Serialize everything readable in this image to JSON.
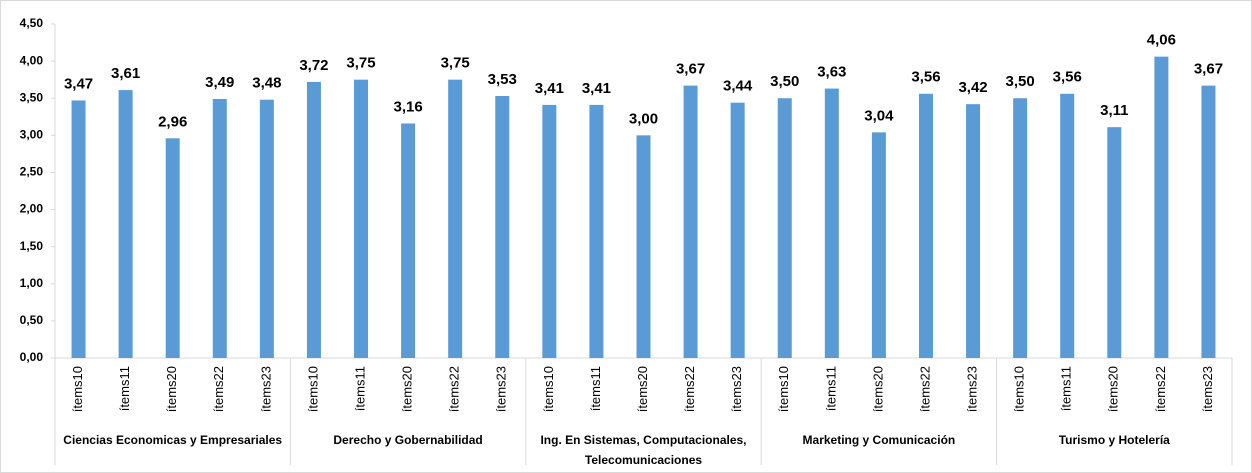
{
  "chart_data": {
    "type": "bar",
    "color": "#5b9bd5",
    "ylim": [
      0,
      4.5
    ],
    "yticks": [
      {
        "value": 0,
        "label": "0,00"
      },
      {
        "value": 0.5,
        "label": "0,50"
      },
      {
        "value": 1,
        "label": "1,00"
      },
      {
        "value": 1.5,
        "label": "1,50"
      },
      {
        "value": 2,
        "label": "2,00"
      },
      {
        "value": 2.5,
        "label": "2,50"
      },
      {
        "value": 3,
        "label": "3,00"
      },
      {
        "value": 3.5,
        "label": "3,50"
      },
      {
        "value": 4,
        "label": "4,00"
      },
      {
        "value": 4.5,
        "label": "4,50"
      }
    ],
    "groups": [
      {
        "label": "Ciencias Economicas y Empresariales",
        "categories": [
          "ítems10",
          "ítems11",
          "ítems20",
          "ítems22",
          "ítems23"
        ],
        "values": [
          3.47,
          3.61,
          2.96,
          3.49,
          3.48
        ],
        "value_labels": [
          "3,47",
          "3,61",
          "2,96",
          "3,49",
          "3,48"
        ]
      },
      {
        "label": "Derecho y Gobernabilidad",
        "categories": [
          "ítems10",
          "ítems11",
          "ítems20",
          "ítems22",
          "ítems23"
        ],
        "values": [
          3.72,
          3.75,
          3.16,
          3.75,
          3.53
        ],
        "value_labels": [
          "3,72",
          "3,75",
          "3,16",
          "3,75",
          "3,53"
        ]
      },
      {
        "label": "Ing. En Sistemas, Computacionales, Telecomunicaciones",
        "categories": [
          "ítems10",
          "ítems11",
          "ítems20",
          "ítems22",
          "ítems23"
        ],
        "values": [
          3.41,
          3.41,
          3.0,
          3.67,
          3.44
        ],
        "value_labels": [
          "3,41",
          "3,41",
          "3,00",
          "3,67",
          "3,44"
        ]
      },
      {
        "label": "Marketing y Comunicación",
        "categories": [
          "ítems10",
          "ítems11",
          "ítems20",
          "ítems22",
          "ítems23"
        ],
        "values": [
          3.5,
          3.63,
          3.04,
          3.56,
          3.42
        ],
        "value_labels": [
          "3,50",
          "3,63",
          "3,04",
          "3,56",
          "3,42"
        ]
      },
      {
        "label": "Turismo y Hotelería",
        "categories": [
          "ítems10",
          "ítems11",
          "ítems20",
          "ítems22",
          "ítems23"
        ],
        "values": [
          3.5,
          3.56,
          3.11,
          4.06,
          3.67
        ],
        "value_labels": [
          "3,50",
          "3,56",
          "3,11",
          "4,06",
          "3,67"
        ]
      }
    ]
  }
}
